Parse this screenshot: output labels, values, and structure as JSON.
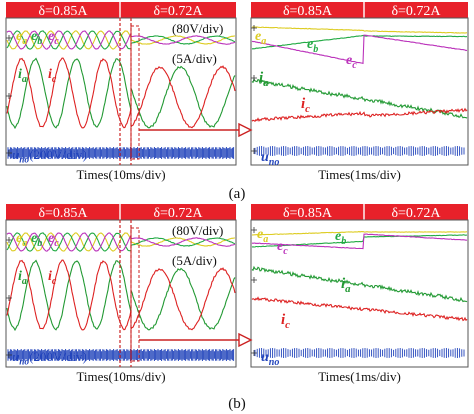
{
  "chart_data": [
    {
      "type": "line",
      "panel": "a-left",
      "header": [
        "δ=0.85A",
        "δ=0.72A"
      ],
      "scale_labels": [
        "(80V/div)",
        "(5A/div)"
      ],
      "trace_labels": [
        "e_a",
        "e_b",
        "e_c",
        "i_a",
        "i_c",
        "u_no(200V/div)"
      ],
      "xlabel": "Times(10ms/div)",
      "series": [
        {
          "name": "e_a",
          "color": "#ddcc22",
          "amplitude": 1,
          "cycles_before": 5,
          "cycles_after": 5
        },
        {
          "name": "e_b",
          "color": "#22aa44",
          "amplitude": 1
        },
        {
          "name": "e_c",
          "color": "#bb33bb",
          "amplitude": 1
        },
        {
          "name": "i_a",
          "color": "#229933",
          "amp_before": 0.85,
          "amp_after": 0.72
        },
        {
          "name": "i_c",
          "color": "#dd2222",
          "amp_before": 0.85,
          "amp_after": 0.72
        },
        {
          "name": "u_no",
          "color": "#2244bb",
          "kind": "pwm"
        }
      ]
    },
    {
      "type": "line",
      "panel": "a-right",
      "header": [
        "δ=0.85A",
        "δ=0.72A"
      ],
      "trace_labels": [
        "e_a",
        "e_b",
        "e_c",
        "i_a",
        "i_c",
        "u_no"
      ],
      "xlabel": "Times(1ms/div)",
      "series": [
        {
          "name": "e_a",
          "color": "#ddcc22"
        },
        {
          "name": "e_b",
          "color": "#22aa44"
        },
        {
          "name": "e_c",
          "color": "#bb33bb"
        },
        {
          "name": "i_a",
          "color": "#229933"
        },
        {
          "name": "i_c",
          "color": "#dd2222"
        },
        {
          "name": "u_no",
          "color": "#2244bb",
          "kind": "pwm"
        }
      ]
    },
    {
      "type": "line",
      "panel": "b-left",
      "header": [
        "δ=0.85A",
        "δ=0.72A"
      ],
      "scale_labels": [
        "(80V/div)",
        "(5A/div)"
      ],
      "trace_labels": [
        "e_a",
        "e_b",
        "e_c",
        "i_a",
        "i_c",
        "u_no(200V/div)"
      ],
      "xlabel": "Times(10ms/div)",
      "series": [
        {
          "name": "e_a",
          "color": "#ddcc22"
        },
        {
          "name": "e_b",
          "color": "#22aa44"
        },
        {
          "name": "e_c",
          "color": "#bb33bb"
        },
        {
          "name": "i_a",
          "color": "#229933"
        },
        {
          "name": "i_c",
          "color": "#dd2222"
        },
        {
          "name": "u_no",
          "color": "#2244bb",
          "kind": "pwm"
        }
      ]
    },
    {
      "type": "line",
      "panel": "b-right",
      "header": [
        "δ=0.85A",
        "δ=0.72A"
      ],
      "trace_labels": [
        "e_a",
        "e_b",
        "e_c",
        "i_a",
        "i_c",
        "u_no"
      ],
      "xlabel": "Times(1ms/div)",
      "series": [
        {
          "name": "e_a",
          "color": "#ddcc22"
        },
        {
          "name": "e_b",
          "color": "#22aa44"
        },
        {
          "name": "e_c",
          "color": "#bb33bb"
        },
        {
          "name": "i_a",
          "color": "#229933"
        },
        {
          "name": "i_c",
          "color": "#dd2222"
        },
        {
          "name": "u_no",
          "color": "#2244bb",
          "kind": "pwm"
        }
      ]
    }
  ],
  "captions": [
    "(a)",
    "(b)"
  ],
  "colors": {
    "header_bg": "#e8212a",
    "header_text": "#ffffff",
    "frame": "#555555",
    "divider": "#cc2222",
    "arrow": "#cc2222",
    "e_a": "#ddcc22",
    "e_b": "#22aa44",
    "e_c": "#bb33bb",
    "i_a": "#229933",
    "i_c": "#dd2222",
    "u_no": "#2244bb"
  }
}
